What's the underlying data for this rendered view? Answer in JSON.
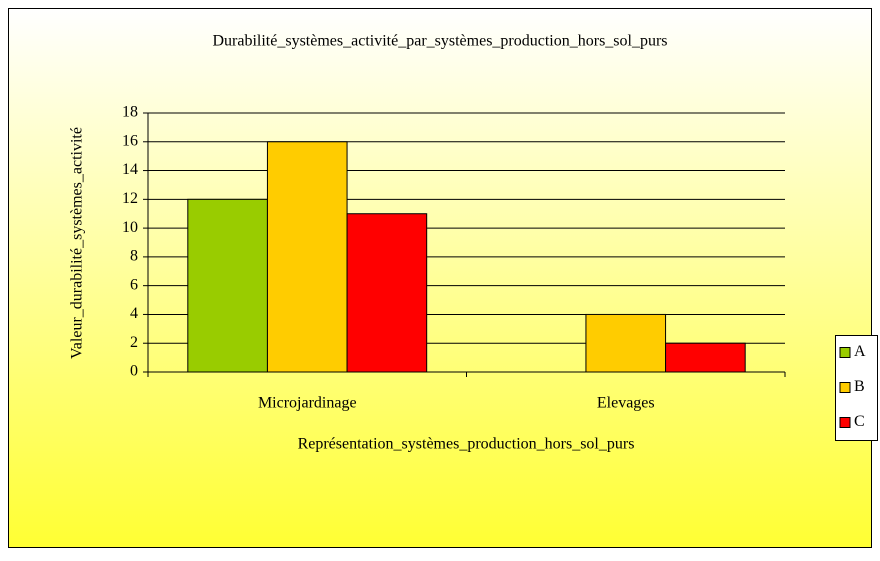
{
  "chart_data": {
    "type": "bar",
    "title": "Durabilité_systèmes_activité_par_systèmes_production_hors_sol_purs",
    "x_label": "Représentation_systèmes_production_hors_sol_purs",
    "y_label": "Valeur_durabilité_systèmes_activité",
    "categories": [
      "Microjardinage",
      "Elevages"
    ],
    "series": [
      {
        "name": "A",
        "color": "#99cc00",
        "values": [
          12,
          0
        ]
      },
      {
        "name": "B",
        "color": "#ffcc00",
        "values": [
          16,
          4
        ]
      },
      {
        "name": "C",
        "color": "#ff0000",
        "values": [
          11,
          2
        ]
      }
    ],
    "ylim": [
      0,
      18
    ],
    "yticks": [
      0,
      2,
      4,
      6,
      8,
      10,
      12,
      14,
      16,
      18
    ],
    "grid": true,
    "legend": "right"
  }
}
